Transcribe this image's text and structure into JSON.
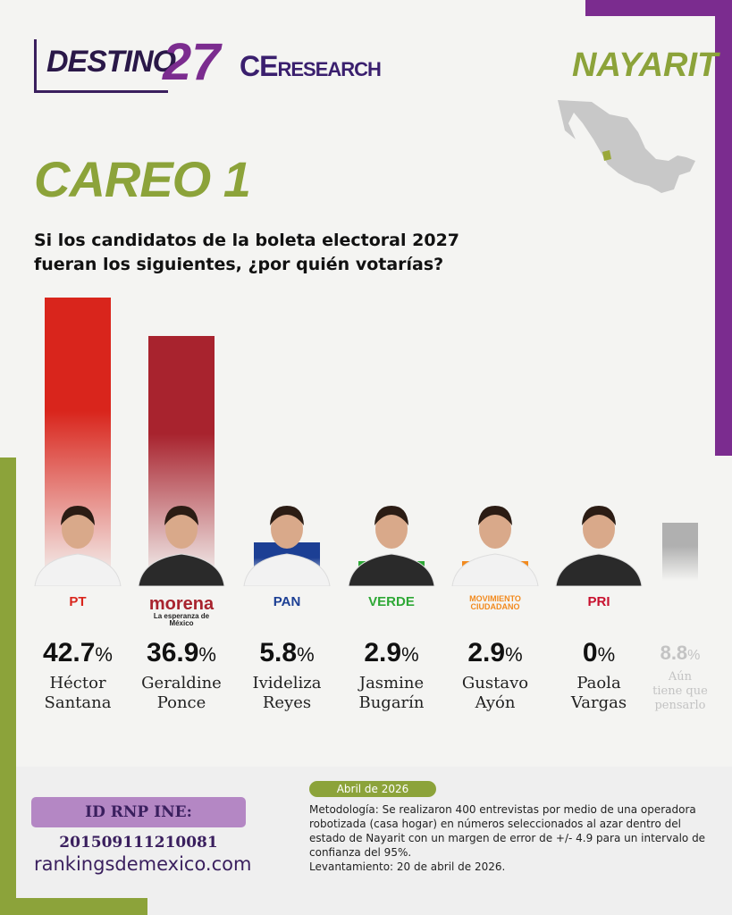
{
  "header": {
    "brand": "DESTINO",
    "brand_num": "27",
    "partner": "CE",
    "partner_suffix": "RESEARCH",
    "state": "NAYARIT"
  },
  "title": "CAREO 1",
  "question": "Si los candidatos de la boleta electoral 2027 fueran los siguientes, ¿por quién votarías?",
  "colors": {
    "purple": "#7b2c8f",
    "green": "#8ca33a",
    "pt": "#d9251c",
    "morena": "#a8232e",
    "undecided": "#b0b0b0"
  },
  "chart_data": {
    "type": "bar",
    "ylim": [
      0,
      42.7
    ],
    "categories": [
      "Héctor Santana",
      "Geraldine Ponce",
      "Ivideliza Reyes",
      "Jasmine Bugarín",
      "Gustavo Ayón",
      "Paola Vargas",
      "Aún tiene que pensarlo"
    ],
    "values": [
      42.7,
      36.9,
      5.8,
      2.9,
      2.9,
      0,
      8.8
    ],
    "labels": [
      "42.7",
      "36.9",
      "5.8",
      "2.9",
      "2.9",
      "0",
      "8.8"
    ],
    "unit": "%",
    "parties": [
      "PT",
      "morena",
      "PAN",
      "VERDE",
      "MOVIMIENTO CIUDADANO",
      "PRI",
      ""
    ],
    "party_sub": [
      "",
      "La esperanza de México",
      "",
      "",
      "",
      "",
      ""
    ],
    "colors": [
      "#d9251c",
      "#a8232e",
      "#1c3f94",
      "#2ea836",
      "#f28a1e",
      "#c8102e",
      "#b0b0b0"
    ]
  },
  "names": [
    [
      "Héctor",
      "Santana"
    ],
    [
      "Geraldine",
      "Ponce"
    ],
    [
      "Ivideliza",
      "Reyes"
    ],
    [
      "Jasmine",
      "Bugarín"
    ],
    [
      "Gustavo",
      "Ayón"
    ],
    [
      "Paola",
      "Vargas"
    ],
    [
      "Aún",
      "tiene que",
      "pensarlo"
    ]
  ],
  "footer": {
    "rnp": "ID RNP INE: 201509111210081",
    "site": "rankingsdemexico.com",
    "date": "Abril de 2026",
    "methodology": "Metodología: Se realizaron 400 entrevistas por medio de una operadora robotizada (casa hogar) en números seleccionados al azar dentro del estado de Nayarit con un margen de error de +/- 4.9 para un intervalo de confianza del 95%.",
    "survey_date": "Levantamiento: 20 de abril de 2026."
  }
}
